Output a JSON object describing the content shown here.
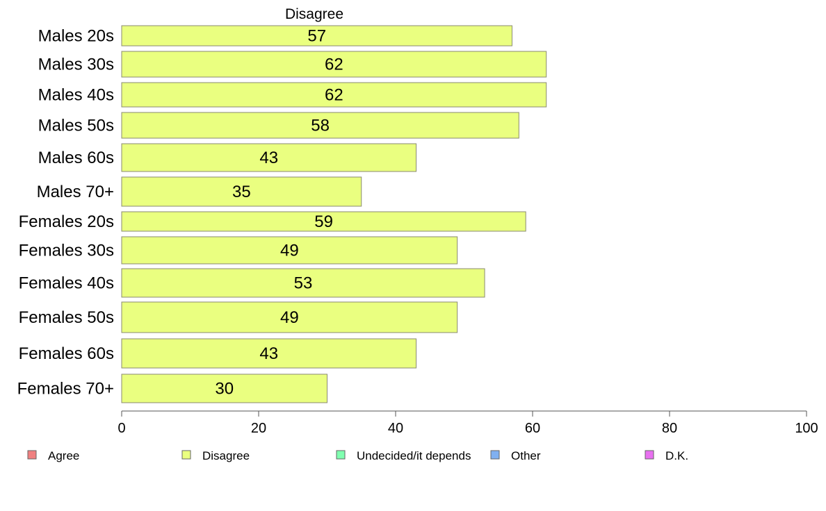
{
  "chart_data": {
    "type": "bar",
    "orientation": "horizontal",
    "title": "Disagree",
    "categories": [
      "Males 20s",
      "Males 30s",
      "Males 40s",
      "Males 50s",
      "Males 60s",
      "Males 70+",
      "Females 20s",
      "Females 30s",
      "Females 40s",
      "Females 50s",
      "Females 60s",
      "Females 70+"
    ],
    "series": [
      {
        "name": "Disagree",
        "values": [
          57,
          62,
          62,
          58,
          43,
          35,
          59,
          49,
          53,
          49,
          43,
          30
        ],
        "color": "#eaff80"
      }
    ],
    "xlim": [
      0,
      100
    ],
    "xticks": [
      0,
      20,
      40,
      60,
      80,
      100
    ],
    "grid": false,
    "legend_placement": "bottom",
    "legend": [
      {
        "label": "Agree",
        "color": "#f08080"
      },
      {
        "label": "Disagree",
        "color": "#eaff80"
      },
      {
        "label": "Undecided/it depends",
        "color": "#80ffb0"
      },
      {
        "label": "Other",
        "color": "#80b0f0"
      },
      {
        "label": "D.K.",
        "color": "#e870f0"
      }
    ]
  }
}
